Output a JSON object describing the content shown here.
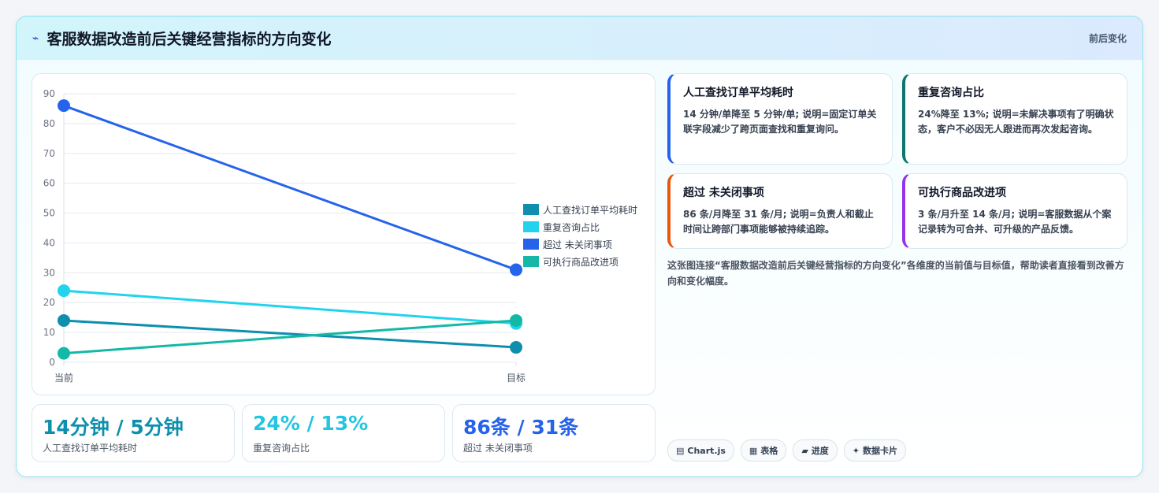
{
  "header": {
    "title": "客服数据改造前后关键经营指标的方向变化",
    "tag": "前后变化",
    "icon": "lightning-icon"
  },
  "chart_data": {
    "type": "line",
    "x": [
      "当前",
      "目标"
    ],
    "ylim": [
      0,
      90
    ],
    "yticks": [
      0,
      10,
      20,
      30,
      40,
      50,
      60,
      70,
      80,
      90
    ],
    "grid": true,
    "legend_position": "right",
    "series": [
      {
        "name": "人工查找订单平均耗时",
        "values": [
          14,
          5
        ],
        "color": "#0e8fad"
      },
      {
        "name": "重复咨询占比",
        "values": [
          24,
          13
        ],
        "color": "#22d3ee"
      },
      {
        "name": "超过 未关闭事项",
        "values": [
          86,
          31
        ],
        "color": "#2563eb"
      },
      {
        "name": "可执行商品改进项",
        "values": [
          3,
          14
        ],
        "color": "#14b8a6"
      }
    ]
  },
  "stats": [
    {
      "value": "14分钟 / 5分钟",
      "label": "人工查找订单平均耗时",
      "color": "#0e8fad"
    },
    {
      "value": "24% / 13%",
      "label": "重复咨询占比",
      "color": "#22c6e0"
    },
    {
      "value": "86条 / 31条",
      "label": "超过 未关闭事项",
      "color": "#2563eb"
    }
  ],
  "cards": [
    {
      "title": "人工查找订单平均耗时",
      "body": "14 分钟/单降至 5 分钟/单; 说明=固定订单关联字段减少了跨页面查找和重复询问。",
      "accent": "#2563eb"
    },
    {
      "title": "重复咨询占比",
      "body": "24%降至 13%; 说明=未解决事项有了明确状态，客户不必因无人跟进而再次发起咨询。",
      "accent": "#0f766e"
    },
    {
      "title": "超过 未关闭事项",
      "body": "86 条/月降至 31 条/月; 说明=负责人和截止时间让跨部门事项能够被持续追踪。",
      "accent": "#ea580c"
    },
    {
      "title": "可执行商品改进项",
      "body": "3 条/月升至 14 条/月; 说明=客服数据从个案记录转为可合并、可升级的产品反馈。",
      "accent": "#9333ea"
    }
  ],
  "description": "这张图连接“客服数据改造前后关键经营指标的方向变化”各维度的当前值与目标值，帮助读者直接看到改善方向和变化幅度。",
  "tags": [
    {
      "icon": "▤",
      "label": "Chart.js"
    },
    {
      "icon": "▦",
      "label": "表格"
    },
    {
      "icon": "▰",
      "label": "进度"
    },
    {
      "icon": "✦",
      "label": "数据卡片"
    }
  ]
}
